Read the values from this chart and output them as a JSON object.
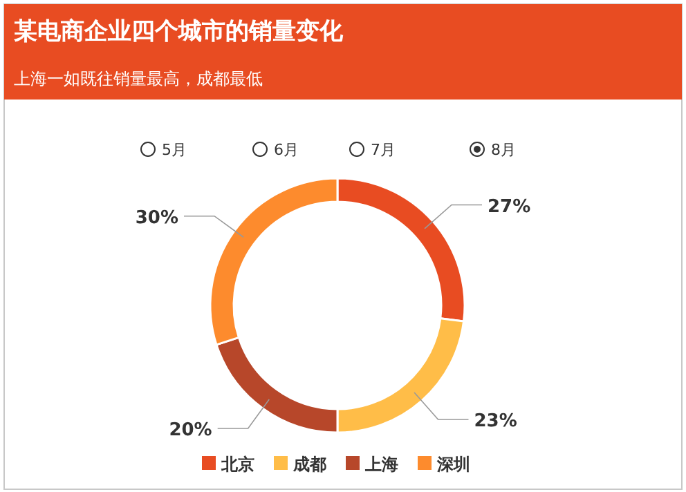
{
  "chart_data": {
    "type": "donut",
    "title": "某电商企业四个城市的销量变化",
    "subtitle": "上海一如既往销量最高，成都最低",
    "categories": [
      "北京",
      "成都",
      "上海",
      "深圳"
    ],
    "values": [
      27,
      23,
      20,
      30
    ],
    "colors": [
      "#e84c22",
      "#ffbd48",
      "#b7472a",
      "#fd8b2d"
    ],
    "annotations": [
      "5月",
      "6月",
      "7月",
      "8月"
    ],
    "value_labels": [
      "27%",
      "23%",
      "20%",
      "30%"
    ],
    "legend": "bottom"
  }
}
